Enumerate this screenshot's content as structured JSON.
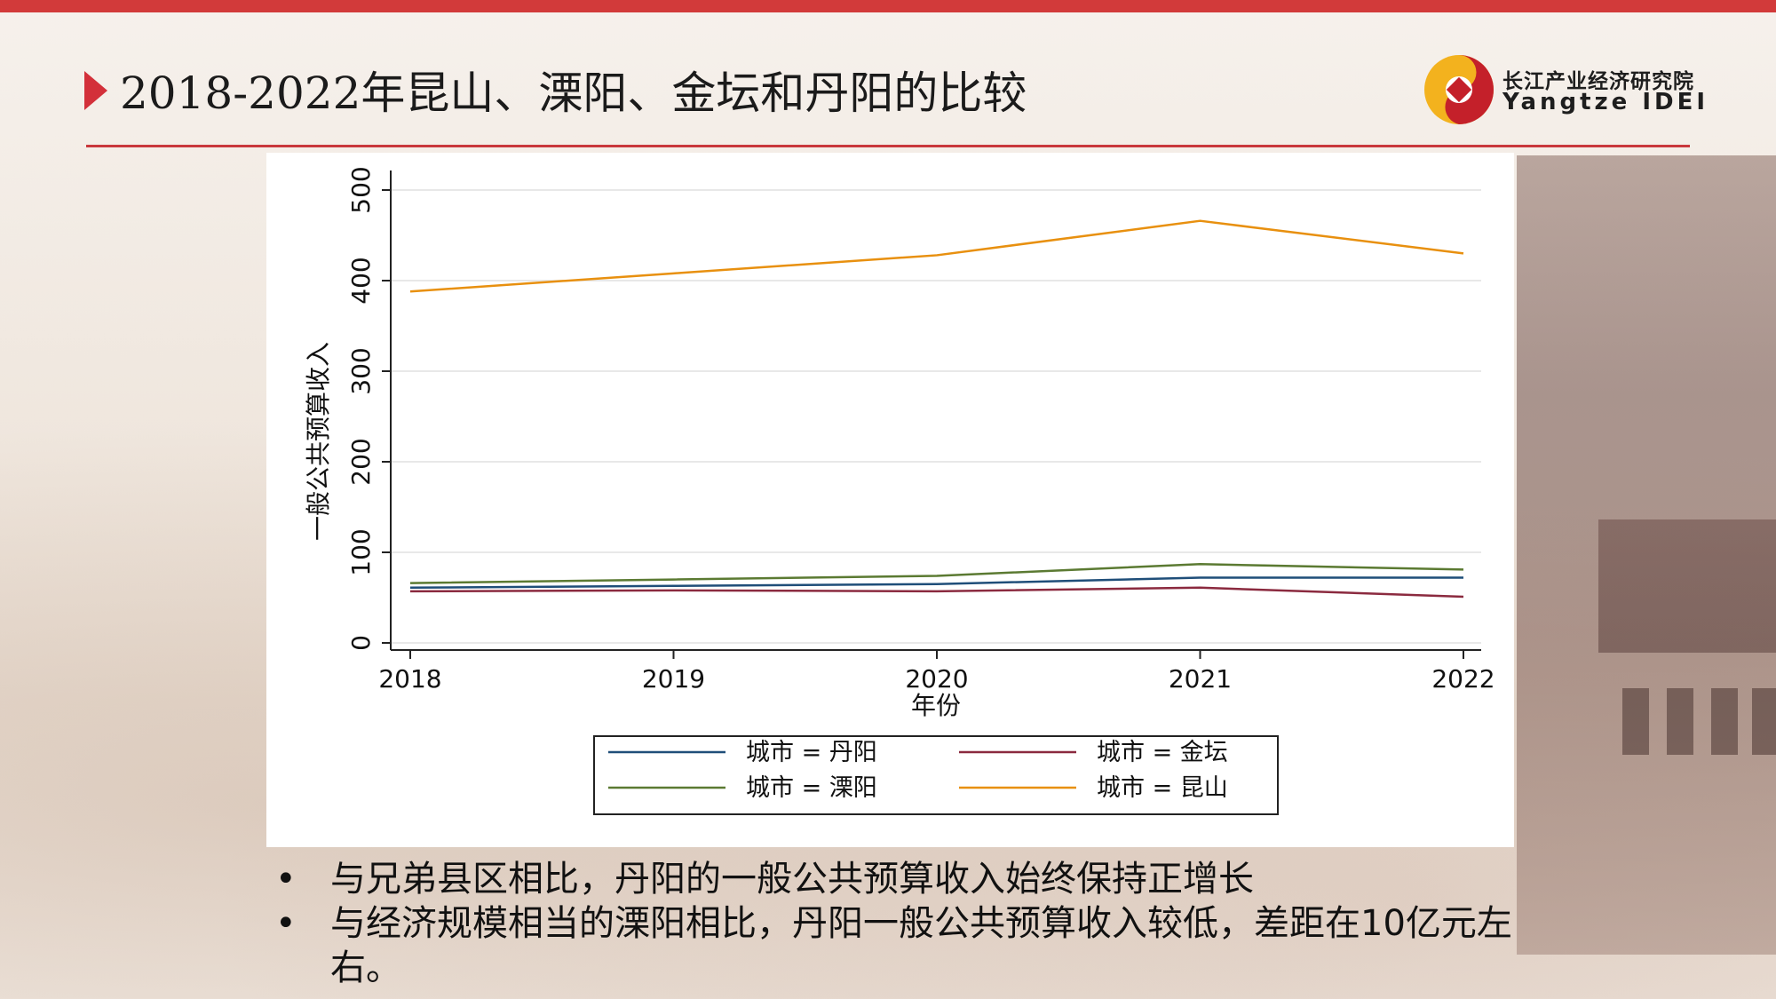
{
  "title": "2018-2022年昆山、溧阳、金坛和丹阳的比较",
  "logo": {
    "name_cn": "长江产业经济研究院",
    "name_en": "Yangtze IDEI"
  },
  "colors": {
    "accent": "#d23a3a",
    "series_danyang": "#1f4e79",
    "series_jintan": "#8b2a3f",
    "series_liyang": "#5b7a32",
    "series_kunshan": "#e8900f"
  },
  "chart_data": {
    "type": "line",
    "title": "",
    "xlabel": "年份",
    "ylabel": "一般公共预算收入",
    "x": [
      2018,
      2019,
      2020,
      2021,
      2022
    ],
    "xticks": [
      "2018",
      "2019",
      "2020",
      "2021",
      "2022"
    ],
    "yticks": [
      "0",
      "100",
      "200",
      "300",
      "400",
      "500"
    ],
    "xlim": [
      2018,
      2022
    ],
    "ylim": [
      0,
      500
    ],
    "grid": true,
    "legend_position": "bottom",
    "series": [
      {
        "name": "城市 = 丹阳",
        "color": "#1f4e79",
        "values": [
          61,
          63,
          65,
          72,
          72
        ]
      },
      {
        "name": "城市 = 金坛",
        "color": "#8b2a3f",
        "values": [
          57,
          58,
          57,
          61,
          51
        ]
      },
      {
        "name": "城市 = 溧阳",
        "color": "#5b7a32",
        "values": [
          66,
          70,
          74,
          87,
          81
        ]
      },
      {
        "name": "城市 = 昆山",
        "color": "#e8900f",
        "values": [
          388,
          408,
          428,
          466,
          430
        ]
      }
    ]
  },
  "bullets": [
    "与兄弟县区相比，丹阳的一般公共预算收入始终保持正增长",
    "与经济规模相当的溧阳相比，丹阳一般公共预算收入较低，差距在10亿元左右。"
  ],
  "bullet_symbol": "•"
}
